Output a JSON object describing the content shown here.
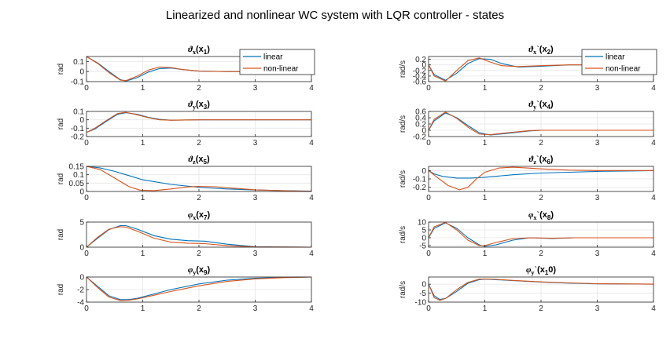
{
  "figure": {
    "title": "Linearized and nonlinear WC system with LQR controller - states"
  },
  "legend": {
    "entries": [
      {
        "label": "linear",
        "color": "#0072BD"
      },
      {
        "label": "non-linear",
        "color": "#D95319"
      }
    ]
  },
  "chart_data": [
    {
      "type": "line",
      "title": "ϑx(x1)",
      "title_main": "ϑ",
      "title_sub": "x",
      "title_arg_main": "(x",
      "title_arg_sub": "1",
      "ylabel": "rad",
      "xlim": [
        0,
        4
      ],
      "ylim": [
        -0.1,
        0.15
      ],
      "yticks": [
        -0.1,
        0,
        0.1
      ],
      "ytick_labels": [
        "-0.1",
        "0",
        "0.1"
      ],
      "xticks": [
        0,
        1,
        2,
        3,
        4
      ],
      "grid": true,
      "legend": "top-right",
      "series": [
        {
          "name": "linear",
          "x": [
            0,
            0.2,
            0.4,
            0.6,
            0.7,
            0.9,
            1.1,
            1.3,
            1.5,
            1.7,
            2.0,
            2.5,
            3.0,
            4.0
          ],
          "y": [
            0.15,
            0.085,
            0.0,
            -0.08,
            -0.095,
            -0.06,
            -0.005,
            0.03,
            0.035,
            0.02,
            0.005,
            0.0,
            0.0,
            0.0
          ]
        },
        {
          "name": "non-linear",
          "x": [
            0,
            0.2,
            0.4,
            0.6,
            0.7,
            0.9,
            1.1,
            1.3,
            1.5,
            1.7,
            2.0,
            2.5,
            3.0,
            4.0
          ],
          "y": [
            0.15,
            0.08,
            -0.01,
            -0.085,
            -0.09,
            -0.045,
            0.015,
            0.045,
            0.04,
            0.02,
            0.005,
            0.0,
            0.0,
            0.0
          ]
        }
      ]
    },
    {
      "type": "line",
      "title": "ϑx`(x2)",
      "title_main": "ϑ",
      "title_sub": "x",
      "title_prime": "`",
      "title_arg_main": "(x",
      "title_arg_sub": "2",
      "ylabel": "rad/s",
      "xlim": [
        0,
        4
      ],
      "ylim": [
        -0.6,
        0.3
      ],
      "yticks": [
        -0.6,
        -0.4,
        -0.2,
        0,
        0.2
      ],
      "ytick_labels": [
        "-0.6",
        "-0.4",
        "-0.2",
        "0",
        "0.2"
      ],
      "xticks": [
        0,
        1,
        2,
        3,
        4
      ],
      "grid": true,
      "legend": "top-right",
      "series": [
        {
          "name": "linear",
          "x": [
            0,
            0.1,
            0.3,
            0.5,
            0.7,
            0.9,
            1.1,
            1.3,
            1.6,
            2.0,
            2.5,
            3.0,
            4.0
          ],
          "y": [
            0.0,
            -0.35,
            -0.55,
            -0.3,
            0.05,
            0.22,
            0.2,
            0.05,
            -0.08,
            -0.05,
            0.0,
            0.0,
            0.0
          ]
        },
        {
          "name": "non-linear",
          "x": [
            0,
            0.1,
            0.3,
            0.5,
            0.7,
            0.9,
            1.1,
            1.3,
            1.6,
            2.0,
            2.5,
            3.0,
            4.0
          ],
          "y": [
            0.0,
            -0.4,
            -0.58,
            -0.2,
            0.15,
            0.25,
            0.1,
            -0.03,
            -0.06,
            -0.03,
            0.0,
            0.0,
            0.0
          ]
        }
      ]
    },
    {
      "type": "line",
      "title": "ϑy(x3)",
      "title_main": "ϑ",
      "title_sub": "y",
      "title_arg_main": "(x",
      "title_arg_sub": "3",
      "ylabel": "rad",
      "xlim": [
        0,
        4
      ],
      "ylim": [
        -0.2,
        0.1
      ],
      "yticks": [
        -0.2,
        -0.1,
        0,
        0.1
      ],
      "ytick_labels": [
        "-0.2",
        "-0.1",
        "0",
        "0.1"
      ],
      "xticks": [
        0,
        1,
        2,
        3,
        4
      ],
      "grid": true,
      "series": [
        {
          "name": "linear",
          "x": [
            0,
            0.15,
            0.35,
            0.55,
            0.7,
            0.9,
            1.1,
            1.3,
            1.5,
            2.0,
            3.0,
            4.0
          ],
          "y": [
            -0.15,
            -0.11,
            -0.02,
            0.065,
            0.085,
            0.065,
            0.03,
            0.005,
            -0.005,
            0.0,
            0.0,
            0.0
          ]
        },
        {
          "name": "non-linear",
          "x": [
            0,
            0.15,
            0.35,
            0.55,
            0.7,
            0.9,
            1.1,
            1.3,
            1.5,
            2.0,
            3.0,
            4.0
          ],
          "y": [
            -0.15,
            -0.1,
            -0.01,
            0.075,
            0.09,
            0.06,
            0.025,
            0.0,
            -0.005,
            0.0,
            0.0,
            0.0
          ]
        }
      ]
    },
    {
      "type": "line",
      "title": "ϑy`(x4)",
      "title_main": "ϑ",
      "title_sub": "y",
      "title_prime": "`",
      "title_arg_main": "(x",
      "title_arg_sub": "4",
      "ylabel": "rad/s",
      "xlim": [
        0,
        4
      ],
      "ylim": [
        -0.2,
        0.6
      ],
      "yticks": [
        -0.2,
        0,
        0.2,
        0.4,
        0.6
      ],
      "ytick_labels": [
        "-0.2",
        "0",
        "0.2",
        "0.4",
        "0.6"
      ],
      "xticks": [
        0,
        1,
        2,
        3,
        4
      ],
      "grid": true,
      "series": [
        {
          "name": "linear",
          "x": [
            0,
            0.1,
            0.3,
            0.5,
            0.7,
            0.9,
            1.1,
            1.4,
            1.8,
            2.0,
            2.5,
            3.0,
            4.0
          ],
          "y": [
            0.0,
            0.3,
            0.55,
            0.4,
            0.15,
            -0.08,
            -0.15,
            -0.1,
            -0.02,
            0.0,
            0.0,
            0.0,
            0.0
          ]
        },
        {
          "name": "non-linear",
          "x": [
            0,
            0.1,
            0.3,
            0.5,
            0.7,
            0.9,
            1.1,
            1.4,
            1.8,
            2.0,
            2.5,
            3.0,
            4.0
          ],
          "y": [
            0.0,
            0.35,
            0.58,
            0.38,
            0.1,
            -0.12,
            -0.14,
            -0.08,
            -0.01,
            0.0,
            0.0,
            0.0,
            0.0
          ]
        }
      ]
    },
    {
      "type": "line",
      "title": "ϑz(x5)",
      "title_main": "ϑ",
      "title_sub": "z",
      "title_arg_main": "(x",
      "title_arg_sub": "5",
      "ylabel": "rad",
      "xlim": [
        0,
        4
      ],
      "ylim": [
        0,
        0.15
      ],
      "yticks": [
        0,
        0.05,
        0.1,
        0.15
      ],
      "ytick_labels": [
        "0",
        "0.05",
        "0.1",
        "0.15"
      ],
      "xticks": [
        0,
        1,
        2,
        3,
        4
      ],
      "grid": true,
      "series": [
        {
          "name": "linear",
          "x": [
            0,
            0.25,
            0.5,
            0.75,
            1.0,
            1.5,
            2.0,
            2.5,
            3.0,
            3.5,
            4.0
          ],
          "y": [
            0.15,
            0.14,
            0.12,
            0.095,
            0.07,
            0.042,
            0.025,
            0.015,
            0.009,
            0.005,
            0.002
          ]
        },
        {
          "name": "non-linear",
          "x": [
            0,
            0.25,
            0.5,
            0.75,
            0.95,
            1.2,
            1.5,
            1.8,
            2.0,
            2.3,
            2.6,
            3.0,
            3.5,
            4.0
          ],
          "y": [
            0.15,
            0.13,
            0.08,
            0.03,
            0.008,
            0.005,
            0.015,
            0.027,
            0.03,
            0.028,
            0.02,
            0.01,
            0.004,
            0.001
          ]
        }
      ]
    },
    {
      "type": "line",
      "title": "ϑz`(x6)",
      "title_main": "ϑ",
      "title_sub": "z",
      "title_prime": "`",
      "title_arg_main": "(x",
      "title_arg_sub": "6",
      "ylabel": "rad/s",
      "xlim": [
        0,
        4
      ],
      "ylim": [
        -0.25,
        0.05
      ],
      "yticks": [
        -0.2,
        -0.1,
        0
      ],
      "ytick_labels": [
        "-0.2",
        "-0.1",
        "0"
      ],
      "xticks": [
        0,
        1,
        2,
        3,
        4
      ],
      "grid": true,
      "series": [
        {
          "name": "linear",
          "x": [
            0,
            0.1,
            0.25,
            0.5,
            0.75,
            1.0,
            1.5,
            2.0,
            2.5,
            3.0,
            3.5,
            4.0
          ],
          "y": [
            0.0,
            -0.04,
            -0.07,
            -0.09,
            -0.09,
            -0.08,
            -0.05,
            -0.03,
            -0.02,
            -0.01,
            -0.005,
            -0.002
          ]
        },
        {
          "name": "non-linear",
          "x": [
            0,
            0.15,
            0.35,
            0.55,
            0.7,
            0.85,
            1.0,
            1.25,
            1.5,
            1.75,
            2.0,
            2.5,
            3.0,
            4.0
          ],
          "y": [
            0.0,
            -0.08,
            -0.18,
            -0.23,
            -0.2,
            -0.1,
            -0.02,
            0.03,
            0.04,
            0.03,
            0.02,
            0.005,
            0.0,
            0.0
          ]
        }
      ]
    },
    {
      "type": "line",
      "title": "φx(x7)",
      "title_main": "φ",
      "title_sub": "x",
      "title_arg_main": "(x",
      "title_arg_sub": "7",
      "ylabel": "rad",
      "xlim": [
        0,
        4
      ],
      "ylim": [
        0,
        5
      ],
      "yticks": [
        0,
        5
      ],
      "ytick_labels": [
        "0",
        "5"
      ],
      "xticks": [
        0,
        1,
        2,
        3,
        4
      ],
      "grid": true,
      "series": [
        {
          "name": "linear",
          "x": [
            0,
            0.2,
            0.4,
            0.6,
            0.7,
            0.9,
            1.2,
            1.5,
            1.8,
            2.1,
            2.5,
            3.0,
            4.0
          ],
          "y": [
            0.0,
            1.8,
            3.5,
            4.3,
            4.3,
            3.6,
            2.3,
            1.6,
            1.3,
            1.2,
            0.6,
            0.1,
            0.0
          ]
        },
        {
          "name": "non-linear",
          "x": [
            0,
            0.2,
            0.4,
            0.6,
            0.7,
            0.9,
            1.2,
            1.5,
            1.8,
            2.1,
            2.5,
            3.0,
            4.0
          ],
          "y": [
            0.0,
            2.0,
            3.6,
            4.1,
            4.0,
            3.2,
            1.8,
            1.0,
            0.8,
            0.7,
            0.3,
            0.05,
            0.0
          ]
        }
      ]
    },
    {
      "type": "line",
      "title": "φx`(x8)",
      "title_main": "φ",
      "title_sub": "x",
      "title_prime": "`",
      "title_arg_main": "(x",
      "title_arg_sub": "8",
      "ylabel": "rad/s",
      "xlim": [
        0,
        4
      ],
      "ylim": [
        -6,
        10
      ],
      "yticks": [
        -5,
        0,
        5,
        10
      ],
      "ytick_labels": [
        "-5",
        "0",
        "5",
        "10"
      ],
      "xticks": [
        0,
        1,
        2,
        3,
        4
      ],
      "grid": true,
      "series": [
        {
          "name": "linear",
          "x": [
            0,
            0.1,
            0.3,
            0.5,
            0.7,
            0.9,
            1.0,
            1.2,
            1.5,
            1.8,
            2.2,
            2.6,
            3.0,
            4.0
          ],
          "y": [
            0.0,
            6.0,
            9.5,
            6.0,
            0.0,
            -4.5,
            -5.5,
            -4.5,
            -1.5,
            0.0,
            -0.5,
            0.0,
            0.0,
            0.0
          ]
        },
        {
          "name": "non-linear",
          "x": [
            0,
            0.1,
            0.3,
            0.5,
            0.7,
            0.9,
            1.0,
            1.2,
            1.5,
            1.8,
            2.2,
            2.6,
            3.0,
            4.0
          ],
          "y": [
            0.0,
            7.0,
            9.8,
            5.0,
            -1.5,
            -5.0,
            -5.0,
            -3.0,
            -0.5,
            0.0,
            -0.3,
            0.0,
            0.0,
            0.0
          ]
        }
      ]
    },
    {
      "type": "line",
      "title": "φy(x9)",
      "title_main": "φ",
      "title_sub": "y",
      "title_arg_main": "(x",
      "title_arg_sub": "9",
      "ylabel": "rad",
      "xlim": [
        0,
        4
      ],
      "ylim": [
        -4,
        0
      ],
      "yticks": [
        -4,
        -2,
        0
      ],
      "ytick_labels": [
        "-4",
        "-2",
        "0"
      ],
      "xticks": [
        0,
        1,
        2,
        3,
        4
      ],
      "grid": true,
      "series": [
        {
          "name": "linear",
          "x": [
            0,
            0.2,
            0.4,
            0.6,
            0.75,
            0.9,
            1.2,
            1.5,
            2.0,
            2.5,
            3.0,
            3.5,
            4.0
          ],
          "y": [
            0.0,
            -1.5,
            -3.0,
            -3.6,
            -3.6,
            -3.4,
            -2.7,
            -2.0,
            -1.1,
            -0.5,
            -0.2,
            -0.05,
            0.0
          ]
        },
        {
          "name": "non-linear",
          "x": [
            0,
            0.2,
            0.4,
            0.6,
            0.75,
            0.9,
            1.2,
            1.5,
            2.0,
            2.5,
            3.0,
            3.5,
            4.0
          ],
          "y": [
            0.0,
            -1.7,
            -3.2,
            -3.75,
            -3.7,
            -3.5,
            -2.9,
            -2.3,
            -1.4,
            -0.7,
            -0.3,
            -0.1,
            0.0
          ]
        }
      ]
    },
    {
      "type": "line",
      "title": "φy`(x10)",
      "title_main": "φ",
      "title_sub": "y",
      "title_prime": "`",
      "title_arg_main": "(x",
      "title_arg_sub": "1",
      "title_arg_tail": "0)",
      "ylabel": "rad/s",
      "xlim": [
        0,
        4
      ],
      "ylim": [
        -10,
        4
      ],
      "yticks": [
        -10,
        -5,
        0
      ],
      "ytick_labels": [
        "-10",
        "-5",
        "0"
      ],
      "xticks": [
        0,
        1,
        2,
        3,
        4
      ],
      "grid": true,
      "series": [
        {
          "name": "linear",
          "x": [
            0,
            0.1,
            0.2,
            0.3,
            0.5,
            0.7,
            0.9,
            1.0,
            1.2,
            1.5,
            2.0,
            2.5,
            3.0,
            4.0
          ],
          "y": [
            0.0,
            -6.5,
            -8.5,
            -8.0,
            -4.0,
            0.5,
            2.5,
            2.8,
            2.5,
            2.0,
            1.2,
            0.6,
            0.2,
            0.0
          ]
        },
        {
          "name": "non-linear",
          "x": [
            0,
            0.1,
            0.2,
            0.3,
            0.5,
            0.7,
            0.9,
            1.0,
            1.2,
            1.5,
            2.0,
            2.5,
            3.0,
            4.0
          ],
          "y": [
            0.0,
            -7.5,
            -9.0,
            -8.0,
            -3.0,
            1.0,
            2.8,
            2.9,
            2.7,
            2.1,
            1.3,
            0.7,
            0.3,
            0.0
          ]
        }
      ]
    }
  ]
}
